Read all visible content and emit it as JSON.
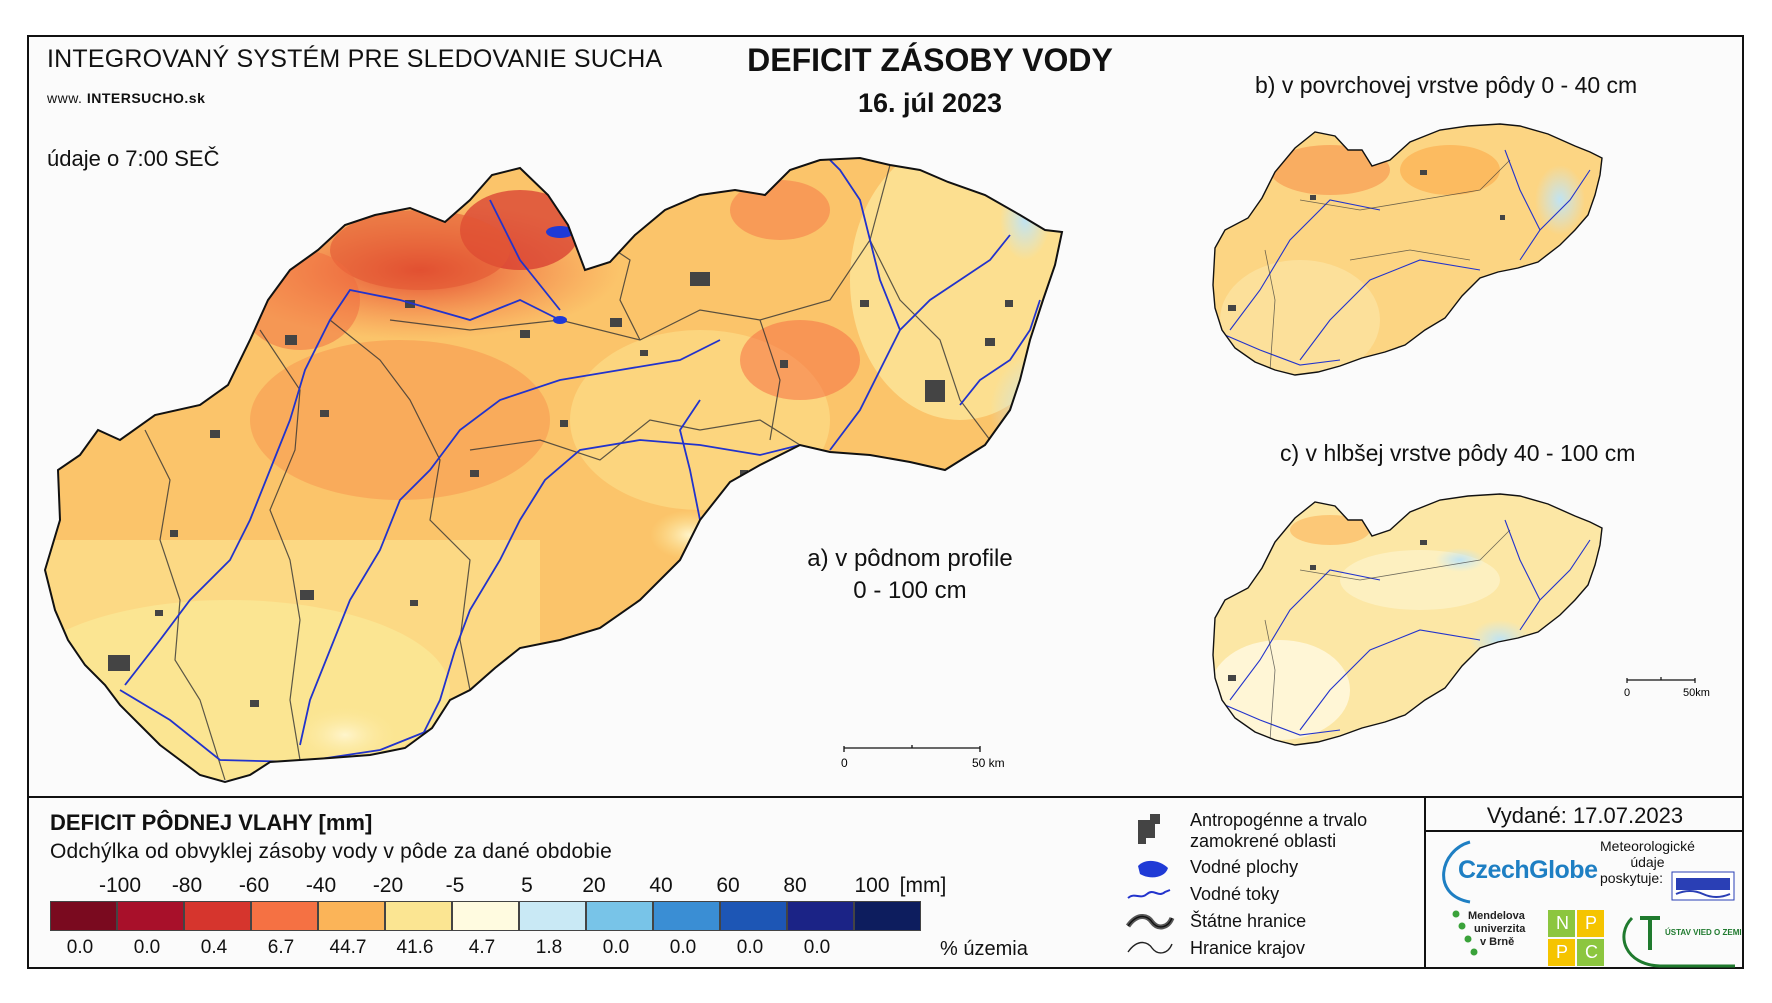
{
  "header": {
    "system_name": "INTEGROVANÝ SYSTÉM PRE SLEDOVANIE SUCHA",
    "url_prefix": "www.",
    "url_main": "INTERSUCHO",
    "url_suffix": ".sk",
    "data_time": "údaje o 7:00 SEČ",
    "title": "DEFICIT ZÁSOBY VODY",
    "date": "16. júl 2023"
  },
  "panels": {
    "a_line1": "a) v pôdnom profile",
    "a_line2": "0 - 100 cm",
    "b": "b) v povrchovej vrstve pôdy 0 - 40 cm",
    "c": "c) v hlbšej vrstve pôdy 40 - 100 cm"
  },
  "scalebars": {
    "main_zero": "0",
    "main_end": "50 km",
    "small_zero": "0",
    "small_end": "50km"
  },
  "legend": {
    "title": "DEFICIT PÔDNEJ VLAHY [mm]",
    "subtitle": "Odchýlka od obvyklej zásoby vody v pôde za dané obdobie",
    "unit": "[mm]",
    "breaks": [
      "-100",
      "-80",
      "-60",
      "-40",
      "-20",
      "-5",
      "5",
      "20",
      "40",
      "60",
      "80",
      "100"
    ],
    "colors": [
      "#7a0a1f",
      "#a8102a",
      "#d6352d",
      "#f57143",
      "#fbb458",
      "#fbe592",
      "#fffbe0",
      "#c9e9f5",
      "#78c4e8",
      "#3a8ed4",
      "#1d56b5",
      "#1b2386",
      "#0d1d5e"
    ],
    "percentages": [
      "0.0",
      "0.0",
      "0.4",
      "6.7",
      "44.7",
      "41.6",
      "4.7",
      "1.8",
      "0.0",
      "0.0",
      "0.0",
      "0.0"
    ],
    "percent_label": "% územia"
  },
  "map_key": {
    "urban": "Antropogénne a trvalo zamokrené oblasti",
    "urban_l1": "Antropogénne a trvalo",
    "urban_l2": "zamokrené oblasti",
    "water_bodies": "Vodné plochy",
    "rivers": "Vodné toky",
    "state_border": "Štátne hranice",
    "region_border": "Hranice krajov"
  },
  "footer": {
    "issued": "Vydané: 17.07.2023",
    "czechglobe": "CzechGlobe",
    "meteo_l1": "Meteorologické",
    "meteo_l2": "údaje",
    "meteo_l3": "poskytuje:",
    "mendel_l1": "Mendelova",
    "mendel_l2": "univerzita",
    "mendel_l3": "v Brně",
    "nppc": [
      "N",
      "P",
      "P",
      "C"
    ]
  }
}
